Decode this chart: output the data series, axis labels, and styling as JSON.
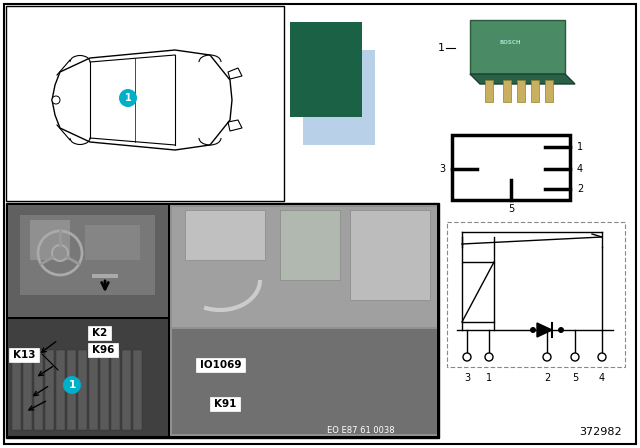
{
  "bg_color": "#ffffff",
  "part_number": "372982",
  "eo_number": "EO E87 61 0038",
  "color_dark_green": "#1b6145",
  "color_light_blue": "#b8d0e8",
  "color_cyan": "#00afc8",
  "color_relay_green": "#3a7a5a",
  "photo_bg": "#888888",
  "photo_dark": "#555555",
  "photo_darker": "#333333",
  "label_k2": "K2",
  "label_k96": "K96",
  "label_k13": "K13",
  "label_k91": "K91",
  "label_io": "IO1069",
  "relay_label": "1",
  "pin_labels_box": [
    "1",
    "4",
    "2",
    "3",
    "5"
  ],
  "circuit_pin_labels": [
    "3",
    "1",
    "2",
    "5",
    "4"
  ]
}
